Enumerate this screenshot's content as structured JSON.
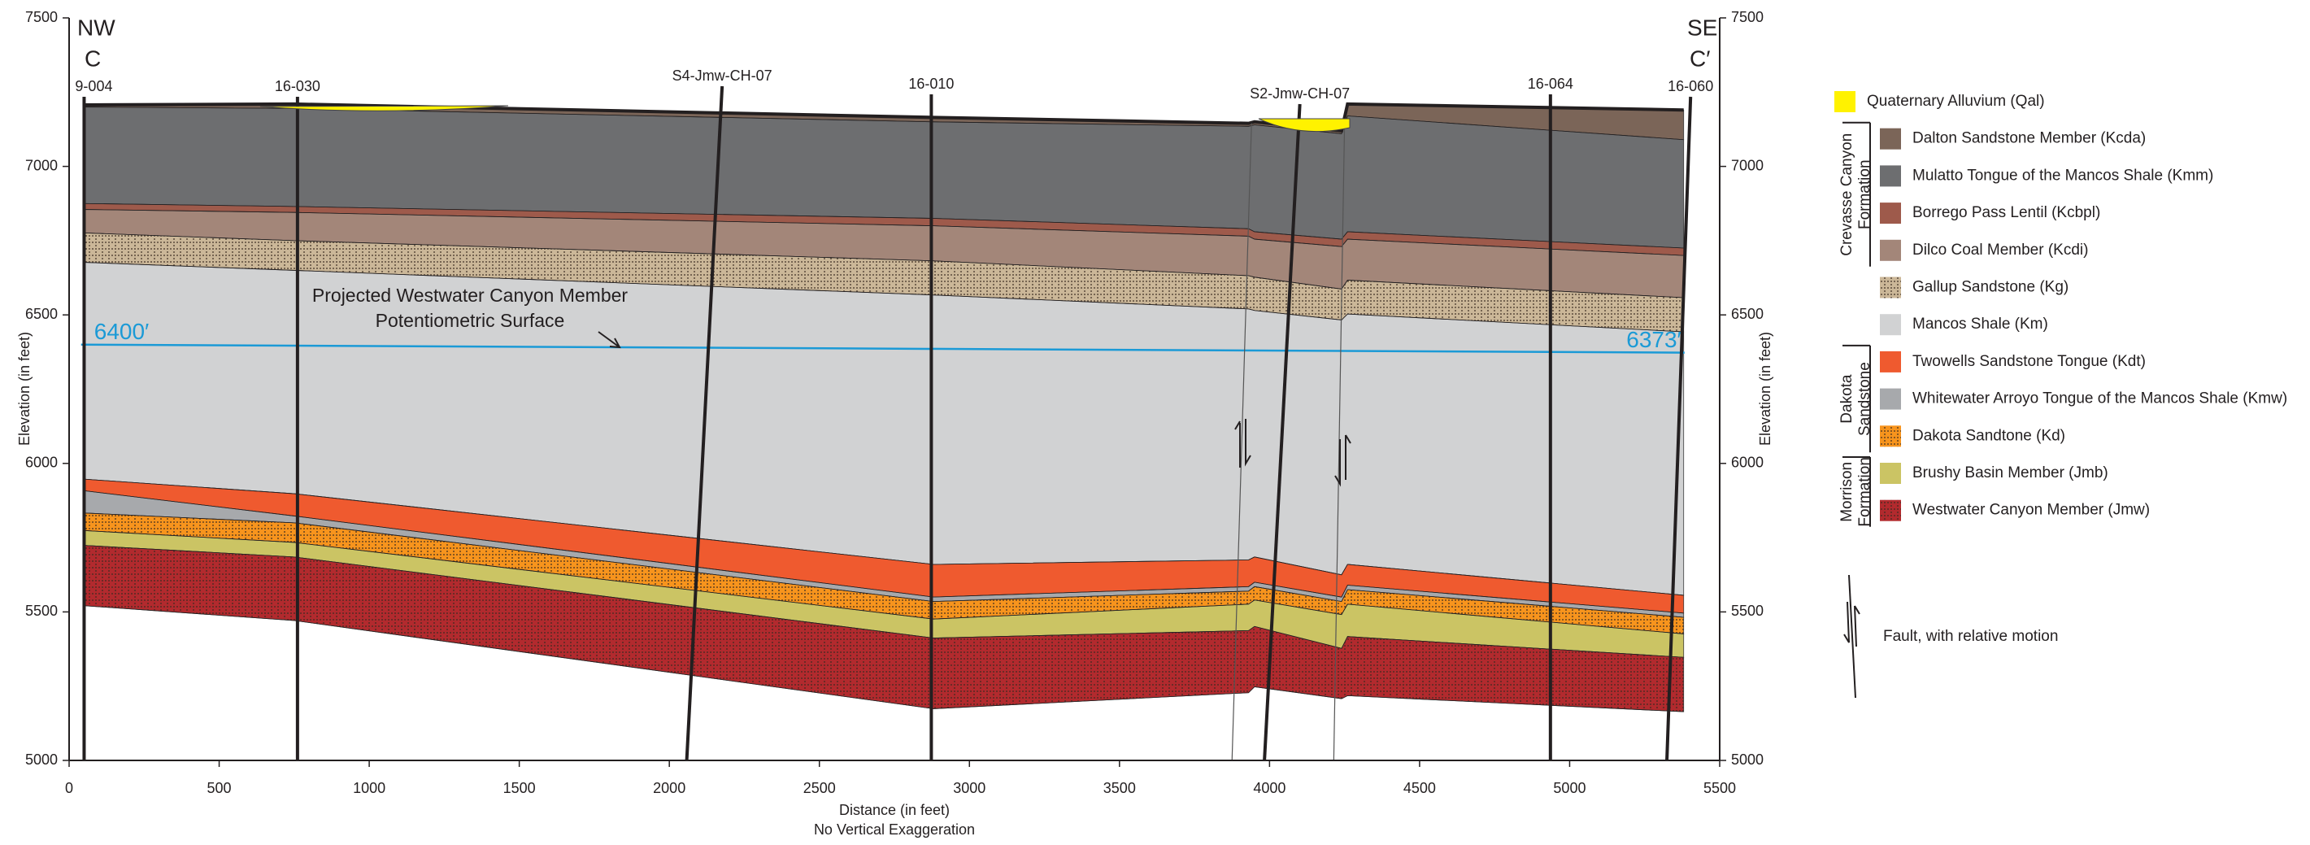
{
  "chart_data": {
    "type": "cross-section",
    "corner_labels": {
      "left": [
        "NW",
        "C"
      ],
      "right": [
        "SE",
        "C′"
      ]
    },
    "x_label": "Distance (in feet)",
    "x_sublabel": "No Vertical Exaggeration",
    "y_label": "Elevation (in feet)",
    "y2_label": "Elevation (in feet)",
    "xlim": [
      0,
      5500
    ],
    "xticks": [
      0,
      500,
      1000,
      1500,
      2000,
      2500,
      3000,
      3500,
      4000,
      4500,
      5000,
      5500
    ],
    "ylim": [
      5000,
      7500
    ],
    "yticks": [
      5000,
      5500,
      6000,
      6500,
      7000,
      7500
    ],
    "y2lim": [
      5000,
      7500
    ],
    "y2ticks": [
      5000,
      5500,
      6000,
      6500,
      7000,
      7500
    ],
    "x": [
      50,
      750,
      2880,
      3930,
      3950,
      4240,
      4260,
      5380
    ],
    "boundaries": [
      [
        7207,
        7210,
        7165,
        7145,
        7150,
        7120,
        7210,
        7190
      ],
      [
        7200,
        7195,
        7150,
        7135,
        7140,
        7110,
        7170,
        7090
      ],
      [
        6875,
        6865,
        6825,
        6790,
        6780,
        6755,
        6780,
        6725
      ],
      [
        6855,
        6845,
        6800,
        6765,
        6755,
        6730,
        6755,
        6700
      ],
      [
        6776,
        6750,
        6682,
        6632,
        6627,
        6587,
        6617,
        6558
      ],
      [
        6677,
        6650,
        6567,
        6520,
        6515,
        6483,
        6503,
        6443
      ],
      [
        5947,
        5898,
        5660,
        5675,
        5685,
        5625,
        5660,
        5556
      ],
      [
        5908,
        5823,
        5550,
        5585,
        5600,
        5550,
        5590,
        5496
      ],
      [
        5833,
        5800,
        5535,
        5570,
        5585,
        5535,
        5575,
        5482
      ],
      [
        5774,
        5734,
        5476,
        5526,
        5540,
        5491,
        5526,
        5426
      ],
      [
        5724,
        5685,
        5412,
        5437,
        5451,
        5377,
        5417,
        5347
      ],
      [
        5521,
        5471,
        5174,
        5228,
        5248,
        5208,
        5218,
        5164
      ]
    ],
    "qal": {
      "name": "Quaternary Alluvium (Qal)",
      "color": "#fff200"
    },
    "layers": [
      {
        "name": "Dalton Sandstone Member (Kcda)",
        "color": "#7b6558"
      },
      {
        "name": "Mulatto Tongue of the Mancos Shale (Kmm)",
        "color": "#6d6e70"
      },
      {
        "name": "Borrego Pass Lentil (Kcbpl)",
        "color": "#9e5a4b"
      },
      {
        "name": "Dilco Coal Member (Kcdi)",
        "color": "#a38679"
      },
      {
        "name": "Gallup Sandstone (Kg)",
        "color": "#cbb798",
        "stippled": true
      },
      {
        "name": "Mancos Shale (Km)",
        "color": "#d1d2d3"
      },
      {
        "name": "Twowells Sandstone Tongue (Kdt)",
        "color": "#ef5a2f"
      },
      {
        "name": "Whitewater Arroyo Tongue of the Mancos Shale (Kmw)",
        "color": "#a7a9ac"
      },
      {
        "name": "Dakota Sandtone (Kd)",
        "color": "#f7941d",
        "stippled": true
      },
      {
        "name": "Brushy Basin Member (Jmb)",
        "color": "#cbc464"
      },
      {
        "name": "Westwater Canyon Member (Jmw)",
        "color": "#b22a2e",
        "stippled": true
      }
    ],
    "groups": [
      {
        "label": [
          "Crevasse Canyon",
          "Formation"
        ]
      },
      {
        "label": [
          "Dakota",
          "Sandstone"
        ]
      },
      {
        "label": [
          "Morrison",
          "Formation"
        ]
      }
    ],
    "wells": [
      {
        "name": "9-004",
        "x_top": 50,
        "x_bottom": 50
      },
      {
        "name": "16-030",
        "x_top": 761,
        "x_bottom": 761
      },
      {
        "name": "S4-Jmw-CH-07",
        "x_top": 2176,
        "x_bottom": 2058
      },
      {
        "name": "16-010",
        "x_top": 2873,
        "x_bottom": 2873
      },
      {
        "name": "S2-Jmw-CH-07",
        "x_top": 4101,
        "x_bottom": 3983
      },
      {
        "name": "16-064",
        "x_top": 4936,
        "x_bottom": 4936
      },
      {
        "name": "16-060",
        "x_top": 5403,
        "x_bottom": 5324
      }
    ],
    "faults": [
      {
        "x_top": 3940,
        "x_bottom": 3875
      },
      {
        "x_top": 4250,
        "x_bottom": 4214
      }
    ],
    "fault_legend": "Fault, with relative motion",
    "water": {
      "x": [
        40,
        5383
      ],
      "values": [
        6400,
        6373
      ],
      "value_labels": [
        "6400′",
        "6373′"
      ],
      "color": "#1b9ad6"
    },
    "annotation": [
      "Projected Westwater Canyon Member",
      "Potentiometric Surface"
    ]
  }
}
